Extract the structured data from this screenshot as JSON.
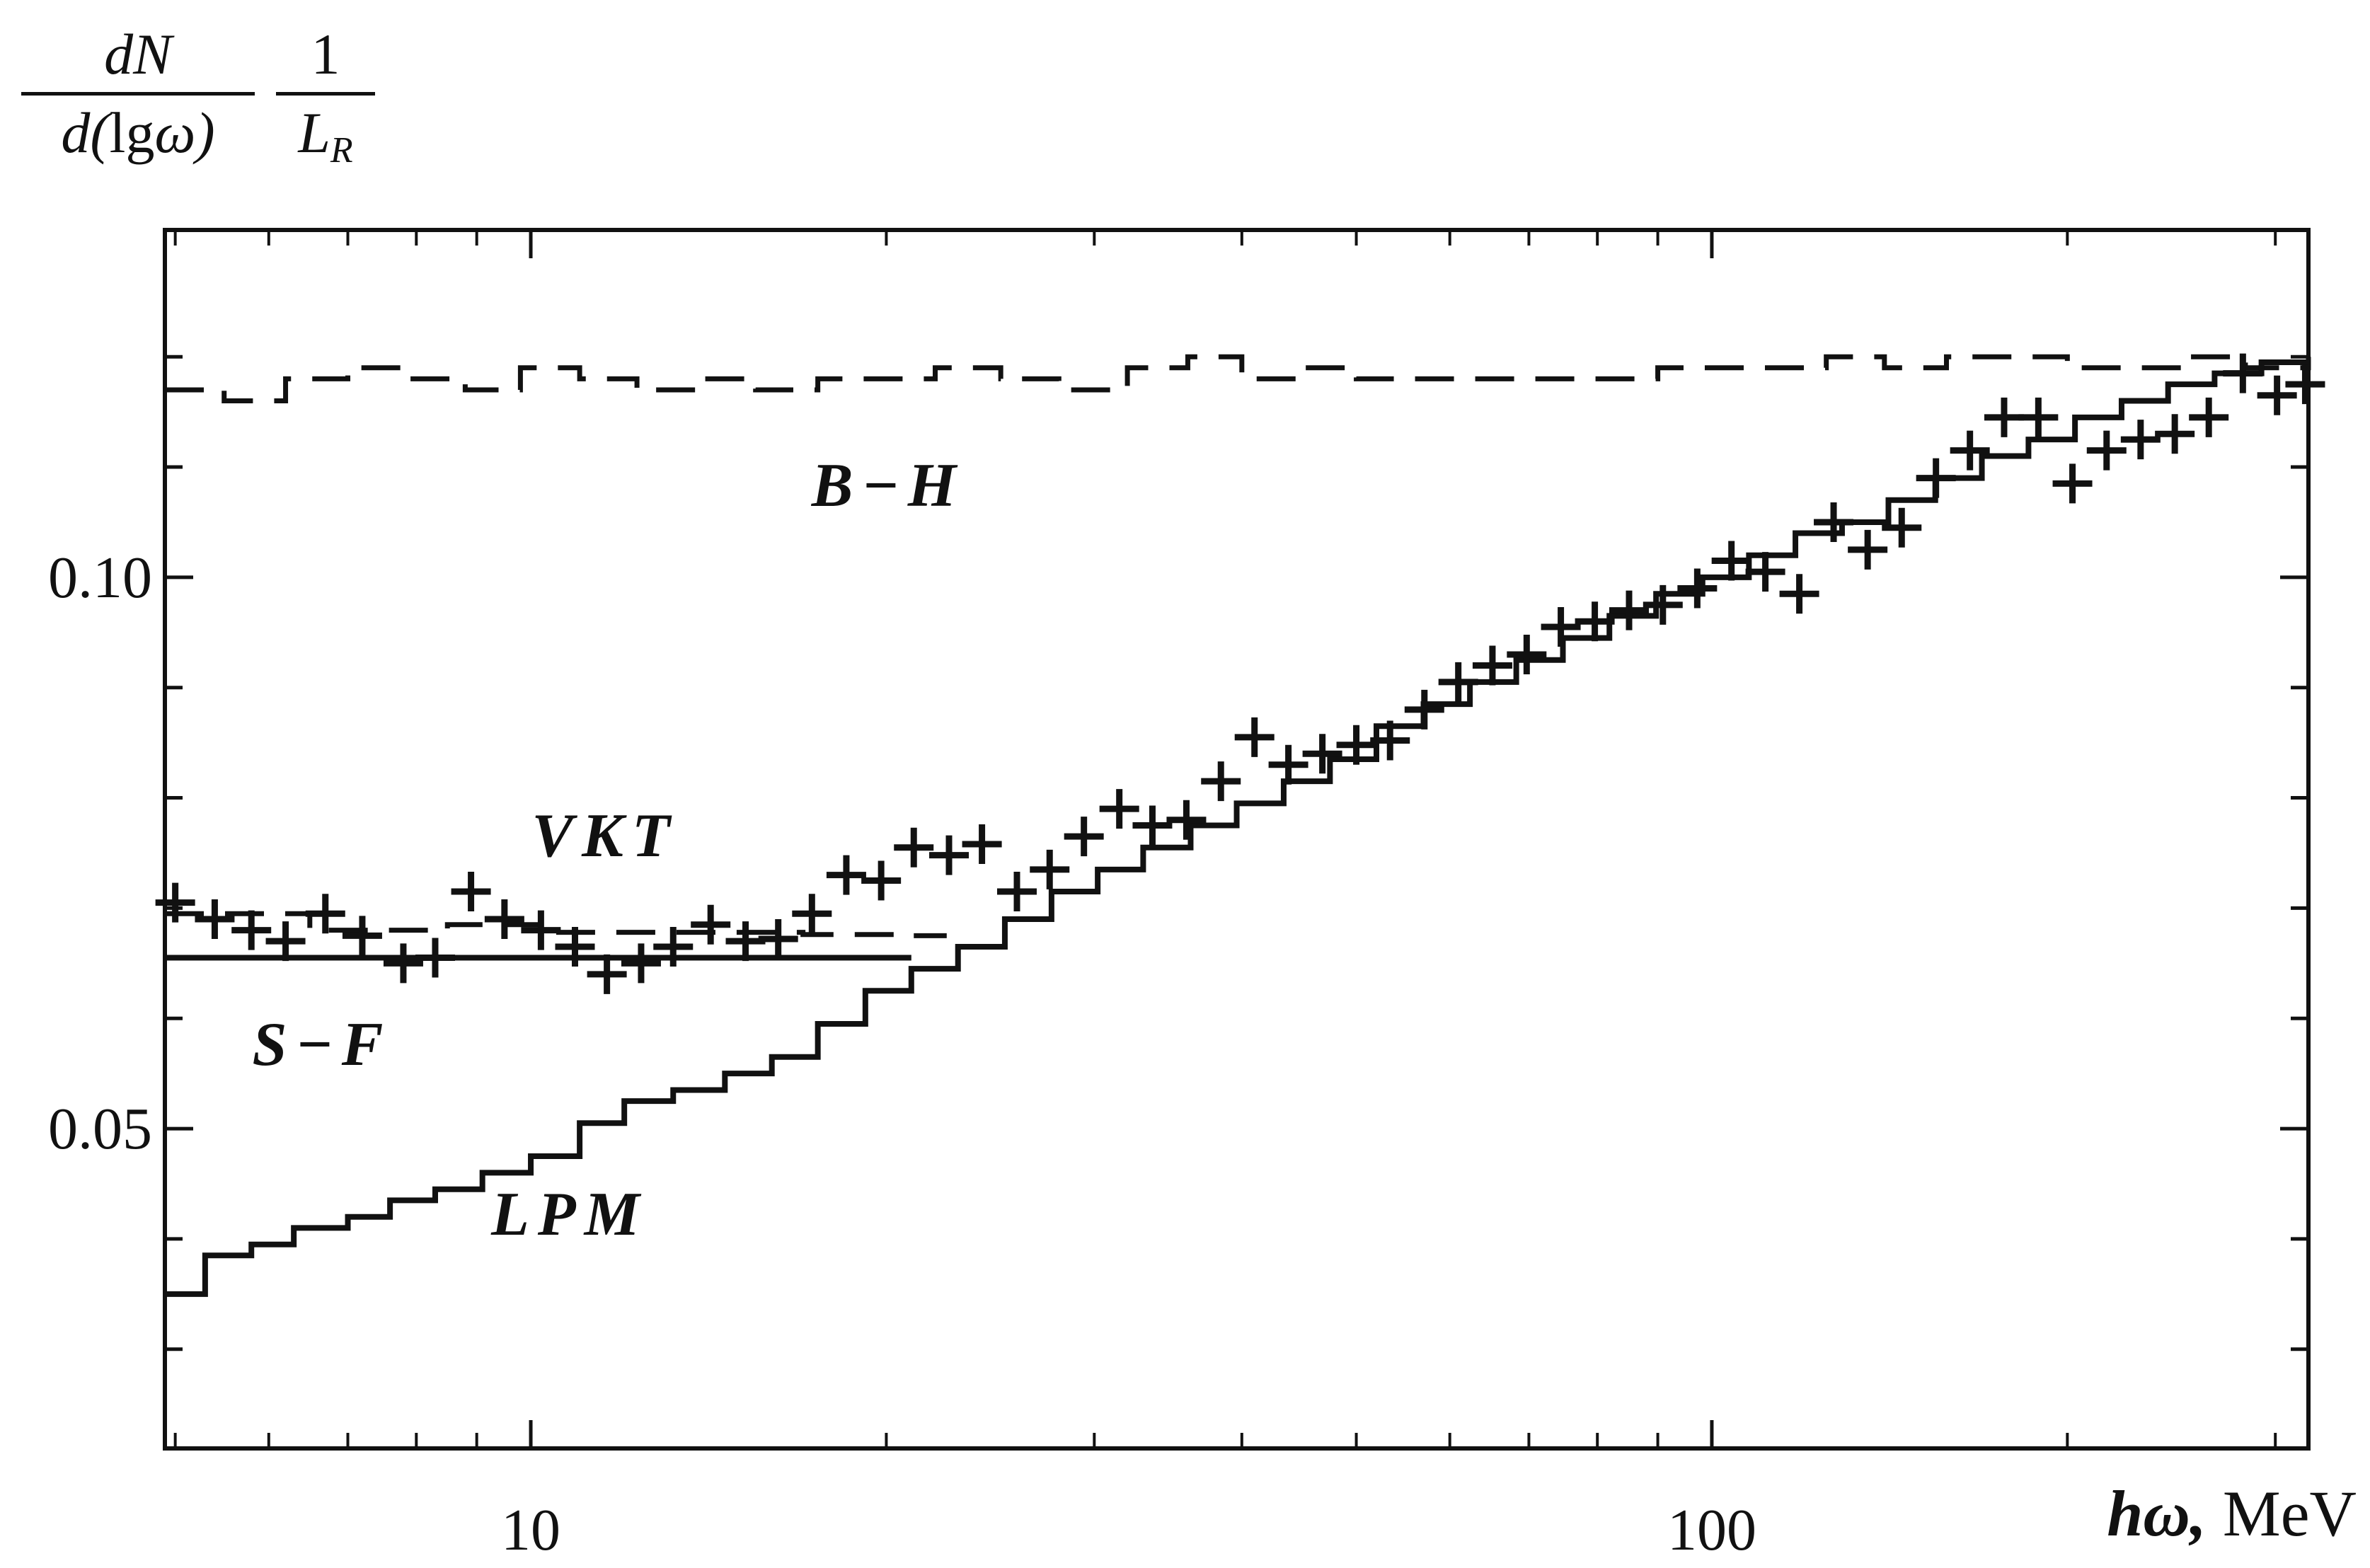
{
  "chart_data": {
    "type": "line",
    "title": "",
    "ylabel": {
      "frac1_num": "dN",
      "frac1_den_a": "d(",
      "frac1_den_b": "lg",
      "frac1_den_c": "ω)",
      "frac2_num": "1",
      "frac2_den": "L",
      "frac2_den_sub": "R"
    },
    "xlabel": {
      "var": "hω,",
      "unit": "MeV"
    },
    "xscale": "log",
    "xlim": [
      4.9,
      320
    ],
    "ylim": [
      0.021,
      0.1315
    ],
    "x_ticks": [
      10,
      100
    ],
    "x_tick_labels": [
      "10",
      "100"
    ],
    "y_ticks": [
      0.05,
      0.1
    ],
    "y_tick_labels": [
      "0.05",
      "0.10"
    ],
    "curve_labels": [
      "B−H",
      "VKT",
      "S−F",
      "LPM"
    ],
    "series": [
      {
        "name": "B−H",
        "style": "dashed-step",
        "x": [
          4.9,
          5.5,
          6.2,
          7.0,
          7.8,
          8.8,
          9.8,
          11,
          12.3,
          13.8,
          15.5,
          17.5,
          19.8,
          22,
          25,
          28,
          32,
          36,
          40,
          45,
          50,
          56,
          63,
          71,
          80,
          90,
          100,
          112,
          125,
          140,
          158,
          178,
          200,
          225,
          252,
          283,
          320
        ],
        "values": [
          0.117,
          0.116,
          0.118,
          0.119,
          0.118,
          0.117,
          0.119,
          0.118,
          0.117,
          0.118,
          0.117,
          0.118,
          0.118,
          0.119,
          0.118,
          0.117,
          0.119,
          0.12,
          0.118,
          0.119,
          0.118,
          0.118,
          0.118,
          0.118,
          0.118,
          0.119,
          0.119,
          0.119,
          0.12,
          0.119,
          0.12,
          0.12,
          0.119,
          0.119,
          0.12,
          0.119,
          0.12
        ]
      },
      {
        "name": "VKT",
        "style": "dashed-step",
        "x": [
          4.9,
          6.5,
          8.5,
          10.5,
          14,
          17,
          19,
          21,
          22.5
        ],
        "values": [
          0.0695,
          0.068,
          0.0685,
          0.0678,
          0.0678,
          0.0676,
          0.0676,
          0.0675,
          0.0675
        ]
      },
      {
        "name": "S−F",
        "style": "solid-flat",
        "x": [
          4.9,
          21
        ],
        "values": [
          0.0655,
          0.0655
        ]
      },
      {
        "name": "LPM",
        "style": "solid-step",
        "x": [
          4.9,
          5.3,
          5.8,
          6.3,
          7.0,
          7.6,
          8.3,
          9.1,
          10.0,
          11.0,
          12.0,
          13.2,
          14.6,
          16.0,
          17.5,
          19.2,
          21.0,
          23.0,
          25.2,
          27.6,
          30.2,
          33.0,
          36.2,
          39.6,
          43.4,
          47.5,
          52.0,
          57.0,
          62.4,
          68.3,
          74.8,
          81.9,
          89.7,
          98.2,
          107.5,
          117.7,
          128.9,
          141.1,
          154.6,
          169.3,
          185.4,
          203,
          222.3,
          243.4,
          266.5,
          292,
          320
        ],
        "values": [
          0.035,
          0.0385,
          0.0395,
          0.041,
          0.042,
          0.0435,
          0.0445,
          0.046,
          0.0475,
          0.0505,
          0.0525,
          0.0535,
          0.055,
          0.0565,
          0.0595,
          0.0625,
          0.0645,
          0.0665,
          0.069,
          0.0715,
          0.0735,
          0.0755,
          0.0775,
          0.0795,
          0.0815,
          0.0835,
          0.0865,
          0.0885,
          0.0905,
          0.0925,
          0.0945,
          0.0965,
          0.0985,
          0.1,
          0.102,
          0.104,
          0.105,
          0.107,
          0.109,
          0.111,
          0.1125,
          0.1145,
          0.116,
          0.1175,
          0.1185,
          0.1195,
          0.1195
        ]
      },
      {
        "name": "",
        "style": "crosses",
        "x": [
          5.0,
          5.4,
          5.8,
          6.2,
          6.7,
          7.2,
          7.8,
          8.3,
          8.9,
          9.5,
          10.2,
          10.9,
          11.6,
          12.4,
          13.2,
          14.2,
          15.2,
          16.2,
          17.3,
          18.5,
          19.8,
          21.1,
          22.6,
          24.1,
          25.8,
          27.5,
          29.4,
          31.5,
          33.6,
          35.9,
          38.4,
          41.0,
          43.8,
          46.8,
          50.0,
          53.4,
          57.1,
          61.0,
          65.2,
          69.7,
          74.5,
          79.6,
          85.1,
          90.9,
          97.2,
          103.9,
          111.0,
          118.6,
          126.8,
          135.5,
          144.8,
          154.8,
          165.4,
          176.8,
          189.0,
          202.0,
          215.9,
          230.7,
          246.6,
          263.5,
          281.6,
          301.0,
          318.0
        ],
        "values": [
          0.0705,
          0.069,
          0.068,
          0.067,
          0.0695,
          0.0675,
          0.065,
          0.0655,
          0.0715,
          0.069,
          0.068,
          0.0665,
          0.064,
          0.065,
          0.0665,
          0.0685,
          0.067,
          0.0672,
          0.0695,
          0.073,
          0.0725,
          0.0755,
          0.0748,
          0.0758,
          0.0715,
          0.0735,
          0.0765,
          0.079,
          0.0775,
          0.078,
          0.0815,
          0.0855,
          0.083,
          0.084,
          0.0848,
          0.0852,
          0.088,
          0.0905,
          0.092,
          0.093,
          0.0955,
          0.096,
          0.097,
          0.0975,
          0.099,
          0.1015,
          0.1005,
          0.0985,
          0.105,
          0.1025,
          0.1045,
          0.109,
          0.1115,
          0.1145,
          0.1145,
          0.1085,
          0.1115,
          0.1125,
          0.113,
          0.1145,
          0.1185,
          0.1165,
          0.1175
        ]
      }
    ],
    "grid": false,
    "legend": "none"
  }
}
